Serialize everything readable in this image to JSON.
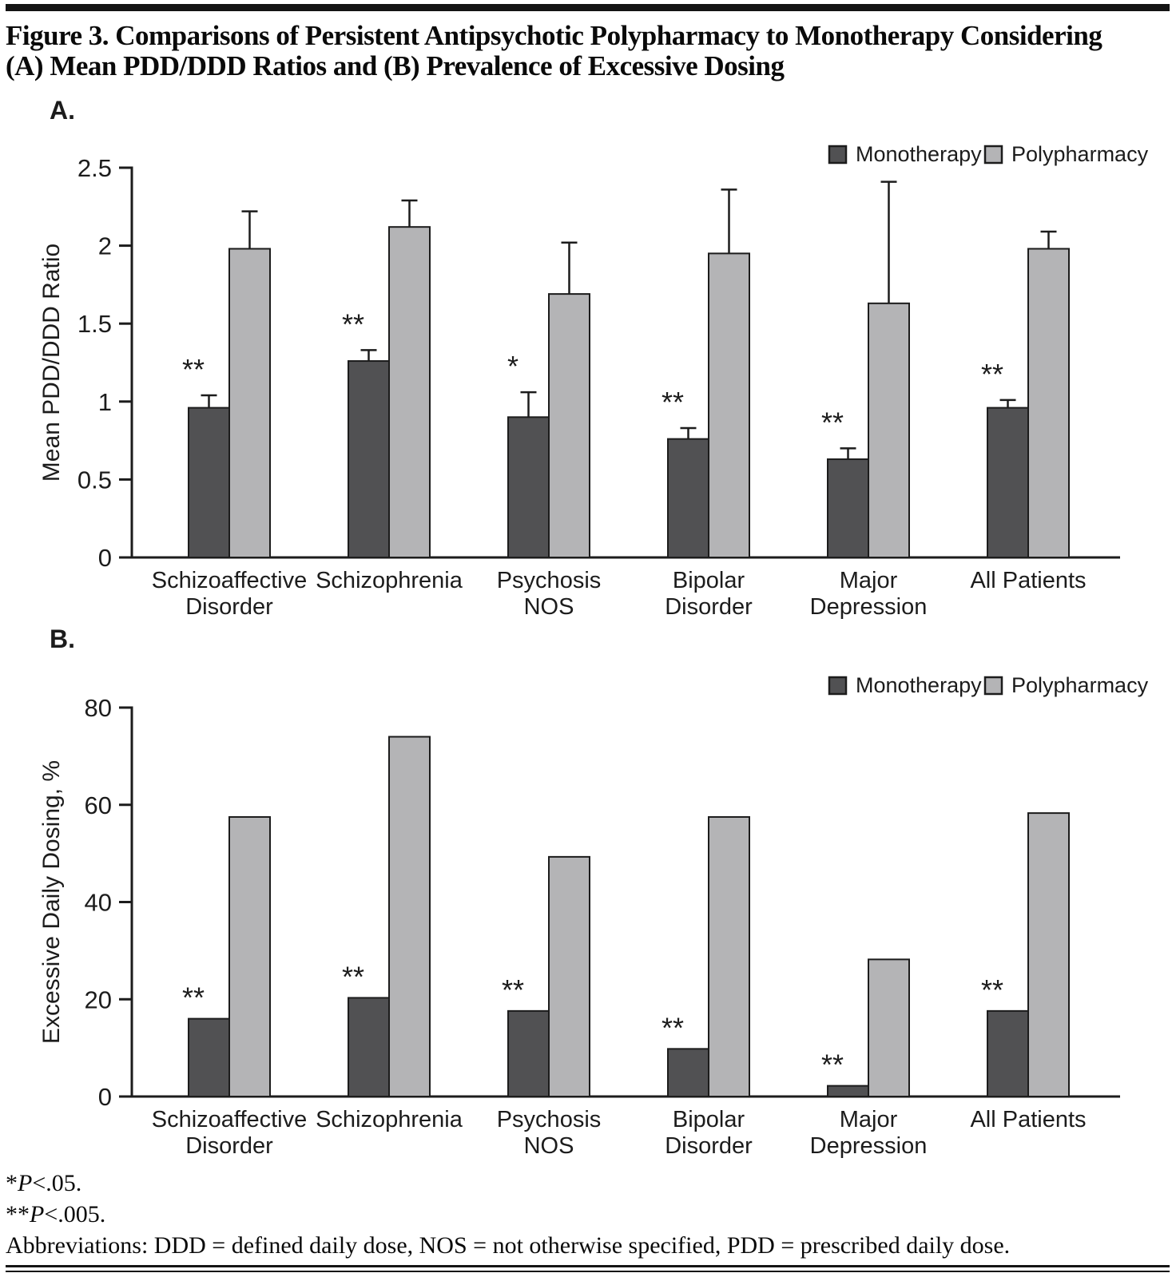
{
  "figure": {
    "title_line1": "Figure 3. Comparisons of Persistent Antipsychotic Polypharmacy to Monotherapy Considering",
    "title_line2": "(A) Mean PDD/DDD Ratios and (B) Prevalence of Excessive Dosing"
  },
  "colors": {
    "monotherapy": "#515153",
    "polypharmacy": "#b4b4b6",
    "axis": "#1c1c1c",
    "top_rule": "#141414"
  },
  "chart_data": [
    {
      "type": "bar",
      "panel_label": "A.",
      "title": "",
      "xlabel": "",
      "ylabel": "Mean PDD/DDD Ratio",
      "ylim": [
        0,
        2.5
      ],
      "yticks": [
        0,
        0.5,
        1,
        1.5,
        2,
        2.5
      ],
      "grid": false,
      "legend": [
        "Monotherapy",
        "Polypharmacy"
      ],
      "legend_position": "top-right",
      "categories": [
        [
          "Schizoaffective",
          "Disorder"
        ],
        [
          "Schizophrenia"
        ],
        [
          "Psychosis",
          "NOS"
        ],
        [
          "Bipolar",
          "Disorder"
        ],
        [
          "Major",
          "Depression"
        ],
        [
          "All Patients"
        ]
      ],
      "series": [
        {
          "name": "Monotherapy",
          "values": [
            0.96,
            1.26,
            0.9,
            0.76,
            0.63,
            0.96
          ],
          "error_high": [
            1.04,
            1.33,
            1.06,
            0.83,
            0.7,
            1.01
          ]
        },
        {
          "name": "Polypharmacy",
          "values": [
            1.98,
            2.12,
            1.69,
            1.95,
            1.63,
            1.98
          ],
          "error_high": [
            2.22,
            2.29,
            2.02,
            2.36,
            2.41,
            2.09
          ]
        }
      ],
      "significance_markers": [
        "**",
        "**",
        "*",
        "**",
        "**",
        "**"
      ]
    },
    {
      "type": "bar",
      "panel_label": "B.",
      "title": "",
      "xlabel": "",
      "ylabel": "Excessive Daily Dosing, %",
      "ylim": [
        0,
        80
      ],
      "yticks": [
        0,
        20,
        40,
        60,
        80
      ],
      "grid": false,
      "legend": [
        "Monotherapy",
        "Polypharmacy"
      ],
      "legend_position": "top-right",
      "categories": [
        [
          "Schizoaffective",
          "Disorder"
        ],
        [
          "Schizophrenia"
        ],
        [
          "Psychosis",
          "NOS"
        ],
        [
          "Bipolar",
          "Disorder"
        ],
        [
          "Major",
          "Depression"
        ],
        [
          "All Patients"
        ]
      ],
      "series": [
        {
          "name": "Monotherapy",
          "values": [
            16,
            20.3,
            17.6,
            9.8,
            2.2,
            17.6
          ]
        },
        {
          "name": "Polypharmacy",
          "values": [
            57.5,
            74,
            49.3,
            57.5,
            28.2,
            58.3
          ]
        }
      ],
      "significance_markers": [
        "**",
        "**",
        "**",
        "**",
        "**",
        "**"
      ]
    }
  ],
  "footnotes": {
    "line1": {
      "marker": "*",
      "p": "P",
      "rest": "<.05."
    },
    "line2": {
      "marker": "**",
      "p": "P",
      "rest": "<.005."
    },
    "abbreviations": "Abbreviations: DDD = defined daily dose, NOS = not otherwise specified, PDD = prescribed daily dose."
  }
}
